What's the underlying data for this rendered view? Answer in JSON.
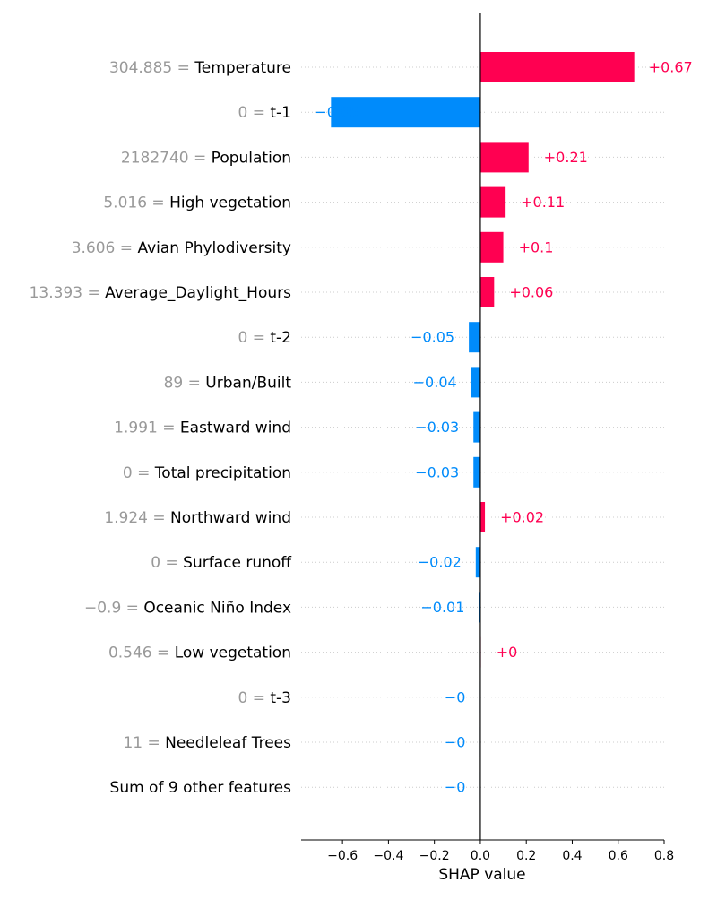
{
  "chart_data": {
    "type": "bar",
    "orientation": "horizontal",
    "xlabel": "SHAP value",
    "xlim": [
      -0.78,
      0.8
    ],
    "xticks": [
      -0.6,
      -0.4,
      -0.2,
      0.0,
      0.2,
      0.4,
      0.6,
      0.8
    ],
    "xtick_labels": [
      "−0.6",
      "−0.4",
      "−0.2",
      "0.0",
      "0.2",
      "0.4",
      "0.6",
      "0.8"
    ],
    "grid": "dotted horizontal lines per row",
    "zero_line": true,
    "colors": {
      "positive": "#ff0051",
      "negative": "#008bfb",
      "feature_value_text": "#999999",
      "feature_name_text": "#000000"
    },
    "features": [
      {
        "value_text": "304.885",
        "name": "Temperature",
        "shap": 0.67,
        "label": "+0.67"
      },
      {
        "value_text": "0",
        "name": "t-1",
        "shap": -0.65,
        "label": "−0.65"
      },
      {
        "value_text": "2182740",
        "name": "Population",
        "shap": 0.21,
        "label": "+0.21"
      },
      {
        "value_text": "5.016",
        "name": "High vegetation",
        "shap": 0.11,
        "label": "+0.11"
      },
      {
        "value_text": "3.606",
        "name": "Avian Phylodiversity",
        "shap": 0.1,
        "label": "+0.1"
      },
      {
        "value_text": "13.393",
        "name": "Average_Daylight_Hours",
        "shap": 0.06,
        "label": "+0.06"
      },
      {
        "value_text": "0",
        "name": "t-2",
        "shap": -0.05,
        "label": "−0.05"
      },
      {
        "value_text": "89",
        "name": "Urban/Built",
        "shap": -0.04,
        "label": "−0.04"
      },
      {
        "value_text": "1.991",
        "name": "Eastward wind",
        "shap": -0.03,
        "label": "−0.03"
      },
      {
        "value_text": "0",
        "name": "Total precipitation",
        "shap": -0.03,
        "label": "−0.03"
      },
      {
        "value_text": "1.924",
        "name": "Northward wind",
        "shap": 0.02,
        "label": "+0.02"
      },
      {
        "value_text": "0",
        "name": "Surface runoff",
        "shap": -0.02,
        "label": "−0.02"
      },
      {
        "value_text": "−0.9",
        "name": "Oceanic Niño Index",
        "shap": -0.006,
        "label": "−0.01"
      },
      {
        "value_text": "0.546",
        "name": "Low vegetation",
        "shap": 0.003,
        "label": "+0"
      },
      {
        "value_text": "0",
        "name": "t-3",
        "shap": -0.002,
        "label": "−0"
      },
      {
        "value_text": "11",
        "name": "Needleleaf Trees",
        "shap": -0.002,
        "label": "−0"
      },
      {
        "value_text": "",
        "name": "Sum of 9 other features",
        "shap": -0.002,
        "label": "−0"
      }
    ]
  }
}
